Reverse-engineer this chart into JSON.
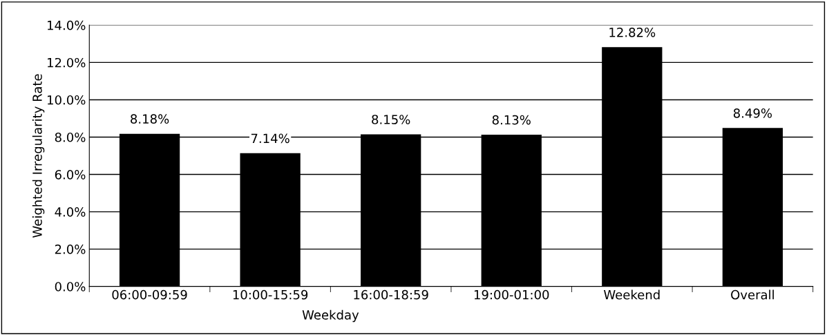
{
  "chart_data": {
    "type": "bar",
    "ylabel": "Weighted Irregularity Rate",
    "xlabel": "Weekday",
    "categories": [
      "06:00-09:59",
      "10:00-15:59",
      "16:00-18:59",
      "19:00-01:00",
      "Weekend",
      "Overall"
    ],
    "values": [
      8.18,
      7.14,
      8.15,
      8.13,
      12.82,
      8.49
    ],
    "value_labels": [
      "8.18%",
      "7.14%",
      "8.15%",
      "8.13%",
      "12.82%",
      "8.49%"
    ],
    "color": "#000000",
    "ylim": [
      0,
      14
    ],
    "yticks": [
      {
        "value": 0,
        "label": "0.0%"
      },
      {
        "value": 2,
        "label": "2.0%"
      },
      {
        "value": 4,
        "label": "4.0%"
      },
      {
        "value": 6,
        "label": "6.0%"
      },
      {
        "value": 8,
        "label": "8.0%"
      },
      {
        "value": 10,
        "label": "10.0%"
      },
      {
        "value": 12,
        "label": "12.0%"
      },
      {
        "value": 14,
        "label": "14.0%"
      }
    ],
    "grid": "y",
    "legend": false
  }
}
